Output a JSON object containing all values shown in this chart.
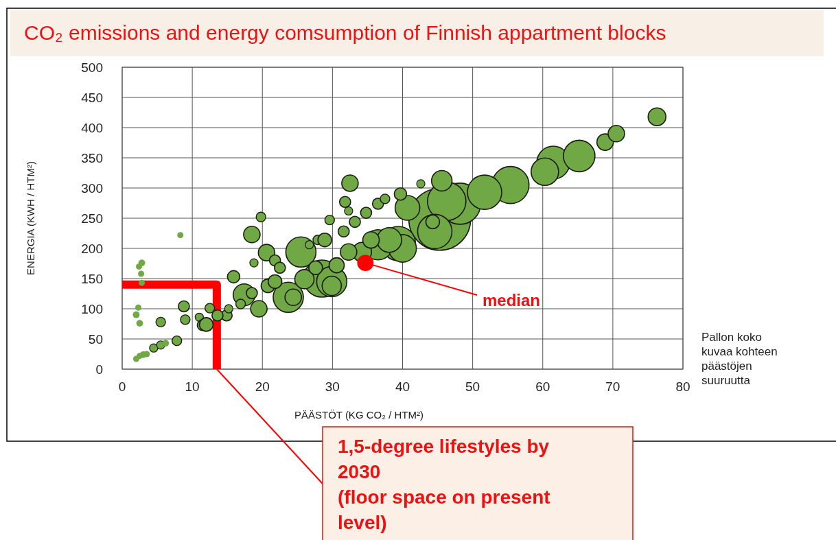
{
  "chart_data": {
    "type": "bubble",
    "title": "CO₂ emissions and energy comsumption of Finnish appartment blocks",
    "xlabel": "PÄÄSTÖT (KG CO₂ / HTM²)",
    "ylabel": "ENERGIA (KWH / HTM²)",
    "xlim": [
      0,
      80
    ],
    "xticks": [
      0,
      10,
      20,
      30,
      40,
      50,
      60,
      70,
      80
    ],
    "ylim": [
      0,
      500
    ],
    "yticks": [
      0,
      50,
      100,
      150,
      200,
      250,
      300,
      350,
      400,
      450,
      500
    ],
    "grid": true,
    "series": [
      {
        "color": "#6fa845",
        "x": [
          45.3,
          48.2,
          28.5,
          46.3,
          55.4,
          39.4,
          44.6,
          51.7,
          61.5,
          65.2,
          23.7,
          25.5,
          29.9,
          36.5,
          40,
          60.3,
          38.1,
          40.7,
          17.4,
          45.6,
          26.0,
          29.9,
          34.2,
          2.0,
          2.5,
          3.0,
          3.5,
          4.5,
          5.5,
          6.2,
          7.8,
          2.0,
          2.3,
          2.5,
          2.8,
          2.4,
          2.7,
          2.8,
          5.5,
          8.3,
          8.8,
          9.0,
          11.0,
          11.5,
          12.0,
          12.5,
          14.9,
          13.6,
          15.2,
          16.9,
          15.9,
          18.5,
          19.5,
          20.8,
          18.8,
          20.6,
          18.5,
          19.8,
          21.8,
          21.8,
          22.5,
          24.4,
          26.7,
          27.6,
          27.9,
          28.9,
          30.6,
          29.6,
          31.6,
          32.3,
          32.3,
          31.8,
          32.5,
          33.2,
          34.8,
          35.5,
          36.5,
          37.5,
          39.7,
          42.6,
          44.3,
          68.9,
          70.5,
          76.3
        ],
        "values": [
          248,
          274,
          150,
          278,
          305,
          208,
          228,
          293,
          342,
          353,
          119,
          194,
          145,
          206,
          200,
          327,
          214,
          267,
          123,
          312,
          149,
          138,
          194,
          17,
          22,
          24,
          25,
          35,
          40,
          43,
          47,
          90,
          102,
          76,
          176,
          170,
          158,
          143,
          78,
          222,
          104,
          82,
          86,
          73,
          74,
          101,
          89,
          89,
          100,
          108,
          153,
          126,
          100,
          138,
          176,
          193,
          223,
          252,
          145,
          180,
          168,
          119,
          206,
          168,
          214,
          214,
          172,
          247,
          228,
          262,
          194,
          277,
          308,
          244,
          259,
          214,
          274,
          282,
          290,
          307,
          244,
          376,
          390,
          418
        ],
        "sizes": [
          1,
          0.444,
          0.36,
          0.387,
          0.36,
          0.309,
          0.309,
          0.309,
          0.284,
          0.261,
          0.239,
          0.239,
          0.239,
          0.239,
          0.2,
          0.198,
          0.16,
          0.16,
          0.126,
          0.11,
          0.097,
          0.097,
          0.097,
          0.01,
          0.01,
          0.012,
          0.01,
          0.018,
          0.018,
          0.012,
          0.024,
          0.012,
          0.01,
          0.012,
          0.012,
          0.01,
          0.01,
          0.01,
          0.024,
          0.01,
          0.032,
          0.024,
          0.018,
          0.032,
          0.049,
          0.024,
          0.032,
          0.032,
          0.018,
          0.024,
          0.04,
          0.032,
          0.071,
          0.049,
          0.018,
          0.071,
          0.071,
          0.024,
          0.049,
          0.032,
          0.032,
          0.071,
          0.018,
          0.049,
          0.024,
          0.049,
          0.06,
          0.024,
          0.032,
          0.018,
          0.071,
          0.032,
          0.071,
          0.032,
          0.032,
          0.071,
          0.032,
          0.024,
          0.04,
          0.018,
          0.049,
          0.071,
          0.071,
          0.083
        ]
      },
      {
        "type": "bubble",
        "color": "#ff0000",
        "x": [
          34.7
        ],
        "values": [
          176
        ],
        "sizes": [
          0.071
        ]
      },
      {
        "type": "line",
        "color": "#ff0000",
        "x": [
          0,
          13.5,
          13.5
        ],
        "values": [
          140,
          140,
          0
        ]
      }
    ],
    "annotations": [
      {
        "text": "median",
        "x": 34.7,
        "y": 176
      },
      {
        "text": "1,5-degree lifestyles by 2030\n(floor space on present level)",
        "x": 13.5,
        "y": 0
      },
      "Pallon koko kuvaa kohteen päästöjen suuruutta"
    ]
  }
}
